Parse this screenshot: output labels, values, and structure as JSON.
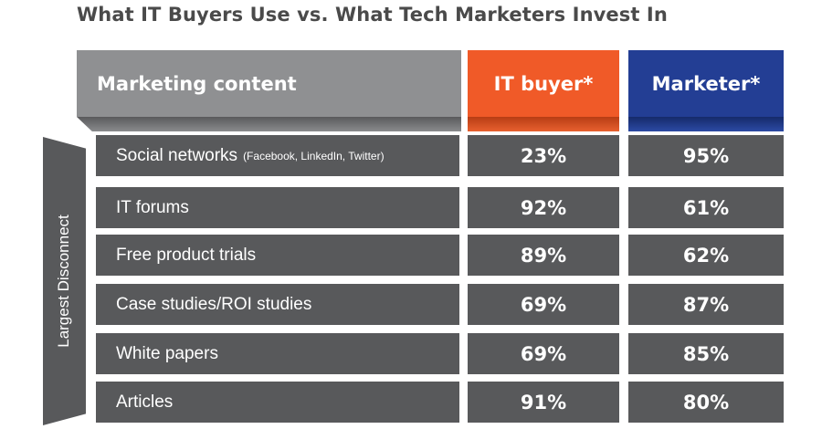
{
  "title": "What IT Buyers Use vs. What Tech Marketers Invest In",
  "side_label": "Largest Disconnect",
  "chart_data": {
    "type": "table",
    "columns": [
      "Marketing content",
      "IT buyer*",
      "Marketer*"
    ],
    "rows": [
      {
        "label": "Social networks",
        "note": "(Facebook, LinkedIn, Twitter)",
        "it_buyer": "23%",
        "marketer": "95%"
      },
      {
        "label": "IT forums",
        "note": "",
        "it_buyer": "92%",
        "marketer": "61%"
      },
      {
        "label": "Free product trials",
        "note": "",
        "it_buyer": "89%",
        "marketer": "62%"
      },
      {
        "label": "Case studies/ROI studies",
        "note": "",
        "it_buyer": "69%",
        "marketer": "87%"
      },
      {
        "label": "White papers",
        "note": "",
        "it_buyer": "69%",
        "marketer": "85%"
      },
      {
        "label": "Articles",
        "note": "",
        "it_buyer": "91%",
        "marketer": "80%"
      }
    ]
  },
  "colors": {
    "header_gray": "#8f9092",
    "it_buyer_orange": "#f05a28",
    "marketer_blue": "#233e94",
    "row_gray": "#58595b"
  }
}
